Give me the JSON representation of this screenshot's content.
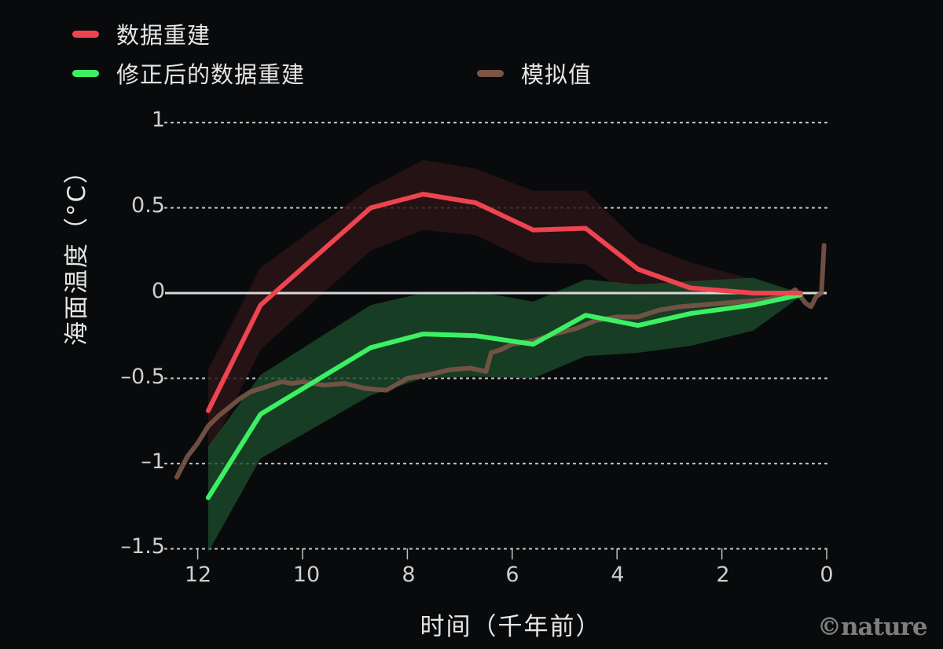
{
  "legend": {
    "items": [
      {
        "label": "数据重建",
        "color": "#ee4450"
      },
      {
        "label": "修正后的数据重建",
        "color": "#3cf063"
      },
      {
        "label": "模拟值",
        "color": "#7a5548"
      }
    ]
  },
  "axes": {
    "y_label": "海面温度（°C）",
    "x_label": "时间（千年前）",
    "y_ticks": [
      "1",
      "0.5",
      "0",
      "–0.5",
      "–1",
      "–1.5"
    ],
    "x_ticks": [
      "12",
      "10",
      "8",
      "6",
      "4",
      "2",
      "0"
    ]
  },
  "credit": "©nature",
  "chart_data": {
    "type": "line",
    "title": "",
    "xlabel": "时间（千年前）",
    "ylabel": "海面温度（°C）",
    "xlim": [
      12.5,
      0
    ],
    "ylim": [
      -1.5,
      1
    ],
    "x_ticks": [
      12,
      10,
      8,
      6,
      4,
      2,
      0
    ],
    "y_ticks": [
      1,
      0.5,
      0,
      -0.5,
      -1,
      -1.5
    ],
    "grid": "horizontal dotted",
    "legend_position": "top",
    "colors": {
      "reconstruction": "#ee4450",
      "corrected": "#3cf063",
      "model": "#7a5548",
      "red_band": "#2a1416",
      "green_band": "#1b4a2a"
    },
    "series": [
      {
        "name": "数据重建",
        "x": [
          11.8,
          10.8,
          8.7,
          7.7,
          6.7,
          5.6,
          4.6,
          3.6,
          2.6,
          1.4,
          0.5
        ],
        "values": [
          -0.69,
          -0.07,
          0.5,
          0.58,
          0.53,
          0.37,
          0.38,
          0.14,
          0.03,
          0.0,
          0.0
        ],
        "band_upper": [
          -0.45,
          0.15,
          0.62,
          0.78,
          0.73,
          0.6,
          0.6,
          0.3,
          0.18,
          0.08,
          0.0
        ],
        "band_lower": [
          -0.95,
          -0.33,
          0.25,
          0.37,
          0.34,
          0.18,
          0.17,
          -0.05,
          -0.06,
          -0.04,
          0.0
        ]
      },
      {
        "name": "修正后的数据重建",
        "x": [
          11.8,
          10.8,
          8.7,
          7.7,
          6.7,
          5.6,
          4.6,
          3.6,
          2.6,
          1.4,
          0.5
        ],
        "values": [
          -1.2,
          -0.71,
          -0.32,
          -0.24,
          -0.25,
          -0.3,
          -0.13,
          -0.19,
          -0.12,
          -0.07,
          -0.01
        ],
        "band_upper": [
          -0.9,
          -0.48,
          -0.07,
          0.0,
          0.01,
          -0.05,
          0.08,
          0.05,
          0.07,
          0.09,
          0.0
        ],
        "band_lower": [
          -1.52,
          -0.97,
          -0.6,
          -0.5,
          -0.49,
          -0.5,
          -0.37,
          -0.35,
          -0.31,
          -0.22,
          -0.02
        ]
      },
      {
        "name": "模拟值",
        "x": [
          12.4,
          12.2,
          12.0,
          11.8,
          11.6,
          11.4,
          11.2,
          11.0,
          10.8,
          10.6,
          10.4,
          10.2,
          10.0,
          9.6,
          9.2,
          8.8,
          8.4,
          8.0,
          7.6,
          7.2,
          6.8,
          6.5,
          6.4,
          6.2,
          6.0,
          5.6,
          5.2,
          4.8,
          4.4,
          4.0,
          3.6,
          3.2,
          2.8,
          2.4,
          2.0,
          1.6,
          1.2,
          0.8,
          0.6,
          0.4,
          0.3,
          0.2,
          0.1,
          0.05
        ],
        "values": [
          -1.08,
          -0.96,
          -0.88,
          -0.78,
          -0.72,
          -0.67,
          -0.62,
          -0.58,
          -0.56,
          -0.54,
          -0.52,
          -0.53,
          -0.52,
          -0.54,
          -0.53,
          -0.56,
          -0.57,
          -0.5,
          -0.48,
          -0.45,
          -0.44,
          -0.46,
          -0.35,
          -0.33,
          -0.3,
          -0.28,
          -0.24,
          -0.21,
          -0.16,
          -0.14,
          -0.14,
          -0.1,
          -0.08,
          -0.07,
          -0.06,
          -0.05,
          -0.04,
          -0.02,
          0.02,
          -0.06,
          -0.08,
          -0.02,
          0.0,
          0.28
        ]
      }
    ]
  }
}
